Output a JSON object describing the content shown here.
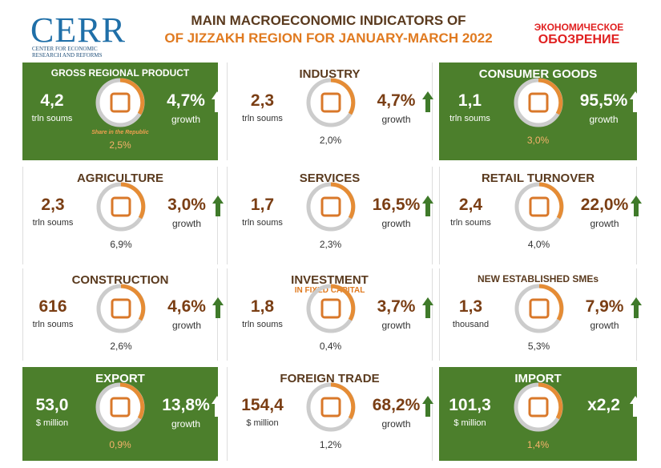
{
  "header": {
    "logo": "CERR",
    "logo_caption": [
      "CENTER FOR ECONOMIC",
      "RESEARCH AND REFORMS"
    ],
    "title": [
      "MAIN MACROECONOMIC INDICATORS OF",
      "OF JIZZAKH REGION FOR JANUARY-MARCH 2022"
    ],
    "partner": [
      "ЭКОНОМИЧЕСКОЕ",
      "ОБОЗРЕНИЕ"
    ]
  },
  "cards": [
    {
      "title": "GROSS REGIONAL PRODUCT",
      "value": "4,2",
      "unit": "trln soums",
      "share_caption": "Share in the Republic",
      "share": "2,5%",
      "growth": "4,7%",
      "growth_label": "growth",
      "background": "#4c7f2c"
    },
    {
      "title": "INDUSTRY",
      "value": "2,3",
      "unit": "trln soums",
      "share": "2,0%",
      "growth": "4,7%",
      "growth_label": "growth"
    },
    {
      "title": "CONSUMER GOODS",
      "value": "1,1",
      "unit": "trln soums",
      "share": "3,0%",
      "growth": "95,5%",
      "growth_label": "growth",
      "background": "#4c7f2c"
    },
    {
      "title": "AGRICULTURE",
      "value": "2,3",
      "unit": "trln soums",
      "share": "6,9%",
      "growth": "3,0%",
      "growth_label": "growth"
    },
    {
      "title": "SERVICES",
      "value": "1,7",
      "unit": "trln soums",
      "share": "2,3%",
      "growth": "16,5%",
      "growth_label": "growth"
    },
    {
      "title": "RETAIL TURNOVER",
      "value": "2,4",
      "unit": "trln soums",
      "share": "4,0%",
      "growth": "22,0%",
      "growth_label": "growth"
    },
    {
      "title": "CONSTRUCTION",
      "value": "616",
      "unit": "trln soums",
      "share": "2,6%",
      "growth": "4,6%",
      "growth_label": "growth"
    },
    {
      "title": "INVESTMENT",
      "subtitle": "IN FIXED CAPITAL",
      "value": "1,8",
      "unit": "trln soums",
      "share": "0,4%",
      "growth": "3,7%",
      "growth_label": "growth"
    },
    {
      "title": "NEW ESTABLISHED SMEs",
      "value": "1,3",
      "unit": "thousand",
      "share": "5,3%",
      "growth": "7,9%",
      "growth_label": "growth"
    },
    {
      "title": "EXPORT",
      "value": "53,0",
      "unit": "$ million",
      "share": "0,9%",
      "growth": "13,8%",
      "growth_label": "growth",
      "background": "#4c7f2c"
    },
    {
      "title": "FOREIGN TRADE",
      "value": "154,4",
      "unit": "$ million",
      "share": "1,2%",
      "growth": "68,2%",
      "growth_label": "growth"
    },
    {
      "title": "IMPORT",
      "value": "101,3",
      "unit": "$ million",
      "share": "1,4%",
      "growth": "x2,2",
      "background": "#4c7f2c"
    }
  ]
}
